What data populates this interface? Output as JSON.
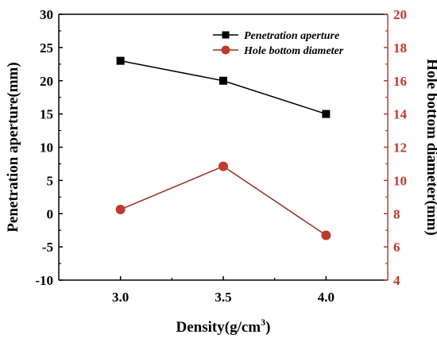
{
  "chart_data": {
    "type": "line",
    "x": [
      3.0,
      3.5,
      4.0
    ],
    "x_tick_labels": [
      "3.0",
      "3.5",
      "4.0"
    ],
    "xlim": [
      2.7,
      4.3
    ],
    "xlabel_main": "Density(g/cm",
    "xlabel_sup": "3",
    "xlabel_tail": ")",
    "left_axis": {
      "label": "Penetration aperture(mm)",
      "ylim": [
        -10,
        30
      ],
      "ticks": [
        -10,
        -5,
        0,
        5,
        10,
        15,
        20,
        25,
        30
      ],
      "color": "#000000"
    },
    "right_axis": {
      "label": "Hole bottom diameter(mm)",
      "ylim": [
        4,
        20
      ],
      "ticks": [
        4,
        6,
        8,
        10,
        12,
        14,
        16,
        18,
        20
      ],
      "color": "#c0392b"
    },
    "series": [
      {
        "name": "Penetration aperture",
        "axis": "left",
        "values": [
          23,
          20,
          15
        ],
        "marker": "square",
        "color": "#000000"
      },
      {
        "name": "Hole bottom diameter",
        "axis": "right",
        "values": [
          8.25,
          10.85,
          6.7
        ],
        "marker": "circle",
        "color": "#c0392b",
        "line_color": "#9b2c20"
      }
    ],
    "legend_position": "top-right"
  }
}
